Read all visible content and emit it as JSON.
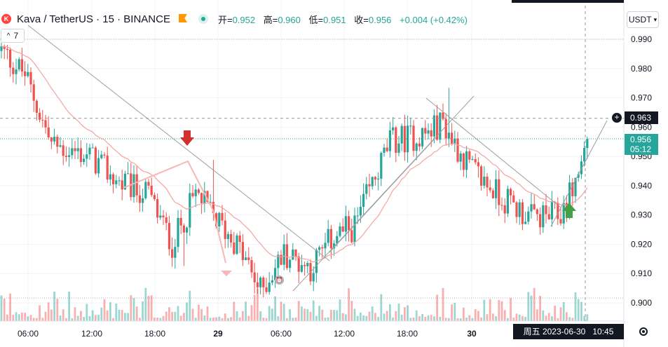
{
  "header": {
    "symbol": "Kava / TetherUS · 15 · BINANCE",
    "logo_letter": "K",
    "ohlc": [
      {
        "k": "开=",
        "v": "0.952"
      },
      {
        "k": "高=",
        "v": "0.960"
      },
      {
        "k": "低=",
        "v": "0.951"
      },
      {
        "k": "收=",
        "v": "0.956"
      },
      {
        "k": "",
        "v": "+0.004 (+0.42%)"
      }
    ],
    "indicator_label": "7",
    "collapse_glyph": "^",
    "currency": "USDT"
  },
  "axis": {
    "price_labels": [
      "0.990",
      "0.980",
      "0.970",
      "0.960",
      "0.950",
      "0.940",
      "0.930",
      "0.920",
      "0.910",
      "0.900"
    ],
    "time_labels": [
      "06:00",
      "12:00",
      "18:00",
      "29",
      "06:00",
      "12:00",
      "18:00",
      "30"
    ],
    "crosshair_price": "0.963",
    "last_price": "0.956",
    "countdown": "05:12",
    "crosshair_time": "周五 2023-06-30   10:45",
    "plus_glyph": "+",
    "alarm_glyph": "⏰"
  },
  "colors": {
    "up": "#26a69a",
    "down": "#ef5350",
    "ma": "#f4a3a1",
    "trendline": "#9e9e9e",
    "bg": "#ffffff"
  },
  "chart_data": {
    "type": "candlestick",
    "title": "Kava / TetherUS · 15 · BINANCE",
    "interval": "15",
    "ylim": [
      0.897,
      0.998
    ],
    "y_ticks": [
      0.99,
      0.98,
      0.97,
      0.96,
      0.95,
      0.94,
      0.93,
      0.92,
      0.91,
      0.9
    ],
    "x_ticks": [
      "06:00",
      "12:00",
      "18:00",
      "29",
      "06:00",
      "12:00",
      "18:00",
      "30"
    ],
    "visible_candles": 200,
    "candles": [],
    "price_waypoints": [
      [
        0,
        0.986
      ],
      [
        8,
        0.978
      ],
      [
        17,
        0.954
      ],
      [
        30,
        0.95
      ],
      [
        40,
        0.941
      ],
      [
        50,
        0.937
      ],
      [
        58,
        0.92
      ],
      [
        66,
        0.937
      ],
      [
        80,
        0.92
      ],
      [
        88,
        0.904
      ],
      [
        96,
        0.917
      ],
      [
        105,
        0.912
      ],
      [
        113,
        0.923
      ],
      [
        120,
        0.926
      ],
      [
        132,
        0.955
      ],
      [
        145,
        0.958
      ],
      [
        150,
        0.962
      ],
      [
        153,
        0.956
      ],
      [
        160,
        0.945
      ],
      [
        170,
        0.936
      ],
      [
        180,
        0.929
      ],
      [
        190,
        0.93
      ],
      [
        196,
        0.944
      ],
      [
        199,
        0.956
      ]
    ],
    "moving_average": "smoothed close",
    "last_close": 0.956,
    "crosshair_price": 0.963,
    "arrows": [
      {
        "type": "down",
        "color": "#d32f2f"
      },
      {
        "type": "up",
        "color": "#43a047"
      }
    ]
  }
}
